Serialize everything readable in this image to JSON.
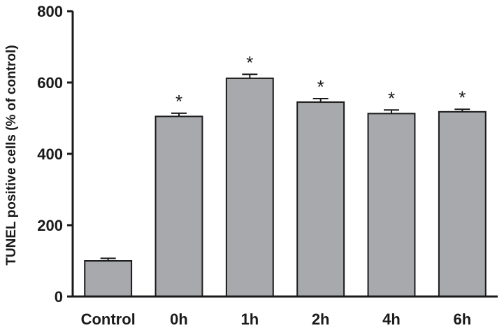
{
  "chart_data": {
    "type": "bar",
    "ylabel": "TUNEL positive cells (% of control)",
    "xlabel": "",
    "categories": [
      "Control",
      "0h",
      "1h",
      "2h",
      "4h",
      "6h"
    ],
    "values": [
      100,
      505,
      612,
      545,
      513,
      518
    ],
    "errors": [
      7,
      9,
      11,
      10,
      10,
      7
    ],
    "significance": [
      "",
      "*",
      "*",
      "*",
      "*",
      "*"
    ],
    "ylim": [
      0,
      800
    ],
    "yticks": [
      0,
      200,
      400,
      600,
      800
    ],
    "bar_color": "#a7a9ac",
    "bar_edge_color": "#1a1a1a",
    "grid": false,
    "legend": "none"
  }
}
